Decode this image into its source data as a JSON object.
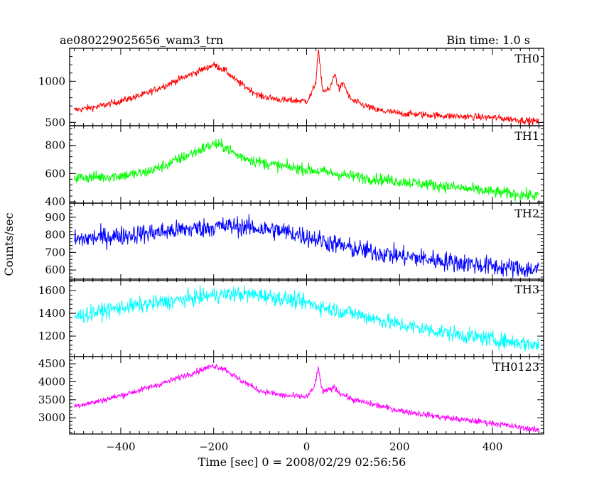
{
  "title_left": "ae080229025656_wam3_trn",
  "title_right": "Bin time: 1.0 s",
  "ylabel": "Counts/sec",
  "xlabel": "Time [sec] 0 = 2008/02/29 02:56:56",
  "chart_data": {
    "type": "line",
    "x_range": [
      -510,
      510
    ],
    "x_ticks": [
      -400,
      -200,
      0,
      200,
      400
    ],
    "x_tick_labels": [
      "−400",
      "−200",
      "0",
      "200",
      "400"
    ],
    "bin_time_s": 1.0,
    "panels": [
      {
        "name": "TH0",
        "color": "#ff0000",
        "ylim": [
          460,
          1400
        ],
        "y_ticks": [
          500,
          1000
        ],
        "noise": 30,
        "profile": [
          [
            -500,
            650
          ],
          [
            -450,
            690
          ],
          [
            -400,
            760
          ],
          [
            -350,
            840
          ],
          [
            -300,
            960
          ],
          [
            -250,
            1080
          ],
          [
            -200,
            1200
          ],
          [
            -175,
            1130
          ],
          [
            -150,
            1000
          ],
          [
            -100,
            820
          ],
          [
            -50,
            770
          ],
          [
            0,
            760
          ],
          [
            10,
            840
          ],
          [
            20,
            1000
          ],
          [
            25,
            1380
          ],
          [
            35,
            880
          ],
          [
            50,
            900
          ],
          [
            60,
            1100
          ],
          [
            70,
            900
          ],
          [
            80,
            980
          ],
          [
            90,
            820
          ],
          [
            100,
            760
          ],
          [
            150,
            650
          ],
          [
            200,
            610
          ],
          [
            300,
            580
          ],
          [
            400,
            560
          ],
          [
            500,
            510
          ]
        ]
      },
      {
        "name": "TH1",
        "color": "#00ff00",
        "ylim": [
          390,
          940
        ],
        "y_ticks": [
          400,
          600,
          800
        ],
        "noise": 30,
        "profile": [
          [
            -500,
            570
          ],
          [
            -450,
            575
          ],
          [
            -400,
            585
          ],
          [
            -350,
            605
          ],
          [
            -300,
            665
          ],
          [
            -250,
            740
          ],
          [
            -200,
            810
          ],
          [
            -175,
            790
          ],
          [
            -150,
            730
          ],
          [
            -100,
            680
          ],
          [
            -50,
            650
          ],
          [
            0,
            630
          ],
          [
            50,
            605
          ],
          [
            100,
            580
          ],
          [
            200,
            545
          ],
          [
            300,
            510
          ],
          [
            400,
            470
          ],
          [
            500,
            440
          ]
        ]
      },
      {
        "name": "TH2",
        "color": "#0000ff",
        "ylim": [
          540,
          980
        ],
        "y_ticks": [
          600,
          700,
          800,
          900
        ],
        "noise": 40,
        "profile": [
          [
            -500,
            770
          ],
          [
            -450,
            785
          ],
          [
            -400,
            795
          ],
          [
            -300,
            820
          ],
          [
            -200,
            845
          ],
          [
            -150,
            850
          ],
          [
            -100,
            835
          ],
          [
            -50,
            820
          ],
          [
            0,
            790
          ],
          [
            50,
            755
          ],
          [
            100,
            720
          ],
          [
            200,
            680
          ],
          [
            300,
            650
          ],
          [
            400,
            620
          ],
          [
            500,
            600
          ]
        ]
      },
      {
        "name": "TH3",
        "color": "#00ffff",
        "ylim": [
          1020,
          1700
        ],
        "y_ticks": [
          1200,
          1400,
          1600
        ],
        "noise": 50,
        "profile": [
          [
            -500,
            1370
          ],
          [
            -450,
            1410
          ],
          [
            -400,
            1450
          ],
          [
            -300,
            1500
          ],
          [
            -200,
            1560
          ],
          [
            -150,
            1570
          ],
          [
            -100,
            1560
          ],
          [
            -50,
            1530
          ],
          [
            0,
            1490
          ],
          [
            50,
            1440
          ],
          [
            100,
            1400
          ],
          [
            200,
            1300
          ],
          [
            300,
            1230
          ],
          [
            400,
            1170
          ],
          [
            500,
            1120
          ]
        ]
      },
      {
        "name": "TH0123",
        "color": "#ff00ff",
        "ylim": [
          2550,
          4700
        ],
        "y_ticks": [
          3000,
          3500,
          4000,
          4500
        ],
        "noise": 60,
        "profile": [
          [
            -500,
            3330
          ],
          [
            -450,
            3450
          ],
          [
            -400,
            3620
          ],
          [
            -350,
            3800
          ],
          [
            -300,
            4000
          ],
          [
            -250,
            4230
          ],
          [
            -200,
            4450
          ],
          [
            -175,
            4350
          ],
          [
            -150,
            4100
          ],
          [
            -100,
            3750
          ],
          [
            -50,
            3620
          ],
          [
            0,
            3580
          ],
          [
            15,
            3800
          ],
          [
            25,
            4350
          ],
          [
            35,
            3700
          ],
          [
            60,
            3850
          ],
          [
            70,
            3700
          ],
          [
            100,
            3500
          ],
          [
            150,
            3350
          ],
          [
            200,
            3200
          ],
          [
            300,
            3000
          ],
          [
            400,
            2850
          ],
          [
            500,
            2650
          ]
        ]
      }
    ]
  }
}
